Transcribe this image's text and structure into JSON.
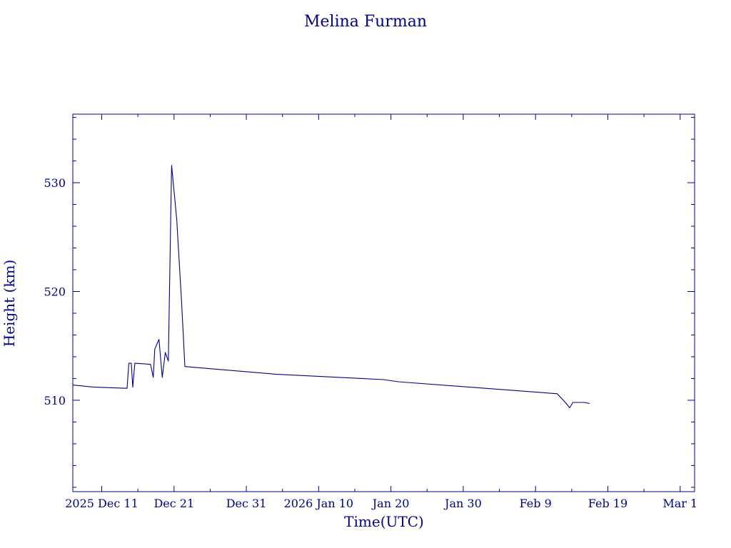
{
  "chart_data": {
    "type": "line",
    "title": "Melina Furman",
    "xlabel": "Time(UTC)",
    "ylabel": "Height (km)",
    "colors": {
      "axis": "#00008b",
      "line": "#00008b",
      "text": "#00008b",
      "background": "#ffffff"
    },
    "grid": false,
    "xlim": [
      "2025-12-07",
      "2026-03-03"
    ],
    "ylim": [
      501.6,
      536.3
    ],
    "x_ticks": [
      {
        "value": "2025-12-11",
        "label": "2025 Dec 11"
      },
      {
        "value": "2025-12-21",
        "label": "Dec 21"
      },
      {
        "value": "2025-12-31",
        "label": "Dec 31"
      },
      {
        "value": "2026-01-10",
        "label": "2026 Jan 10"
      },
      {
        "value": "2026-01-20",
        "label": "Jan 20"
      },
      {
        "value": "2026-01-30",
        "label": "Jan 30"
      },
      {
        "value": "2026-02-09",
        "label": "Feb  9"
      },
      {
        "value": "2026-02-19",
        "label": "Feb 19"
      },
      {
        "value": "2026-03-01",
        "label": "Mar  1"
      }
    ],
    "y_ticks": [
      {
        "value": 510,
        "label": "510"
      },
      {
        "value": 520,
        "label": "520"
      },
      {
        "value": 530,
        "label": "530"
      }
    ],
    "series": [
      {
        "points": [
          [
            "2025-12-07T00:00",
            511.4
          ],
          [
            "2025-12-10T00:00",
            511.2
          ],
          [
            "2025-12-14T12:00",
            511.1
          ],
          [
            "2025-12-14T18:00",
            513.4
          ],
          [
            "2025-12-15T02:00",
            513.4
          ],
          [
            "2025-12-15T07:00",
            511.2
          ],
          [
            "2025-12-15T14:00",
            513.4
          ],
          [
            "2025-12-17T18:00",
            513.3
          ],
          [
            "2025-12-18T03:00",
            512.1
          ],
          [
            "2025-12-18T08:00",
            514.7
          ],
          [
            "2025-12-18T22:00",
            515.6
          ],
          [
            "2025-12-19T09:00",
            512.1
          ],
          [
            "2025-12-19T19:00",
            514.4
          ],
          [
            "2025-12-20T05:00",
            513.6
          ],
          [
            "2025-12-20T16:00",
            531.6
          ],
          [
            "2025-12-21T09:00",
            526.6
          ],
          [
            "2025-12-22T01:00",
            519.1
          ],
          [
            "2025-12-22T12:00",
            513.1
          ],
          [
            "2026-01-04T00:00",
            512.4
          ],
          [
            "2026-01-19T00:00",
            511.9
          ],
          [
            "2026-01-21T00:00",
            511.7
          ],
          [
            "2026-02-12T00:00",
            510.6
          ],
          [
            "2026-02-13T06:00",
            509.7
          ],
          [
            "2026-02-13T17:00",
            509.3
          ],
          [
            "2026-02-14T04:00",
            509.8
          ],
          [
            "2026-02-15T18:00",
            509.8
          ],
          [
            "2026-02-16T12:00",
            509.7
          ]
        ]
      }
    ]
  }
}
